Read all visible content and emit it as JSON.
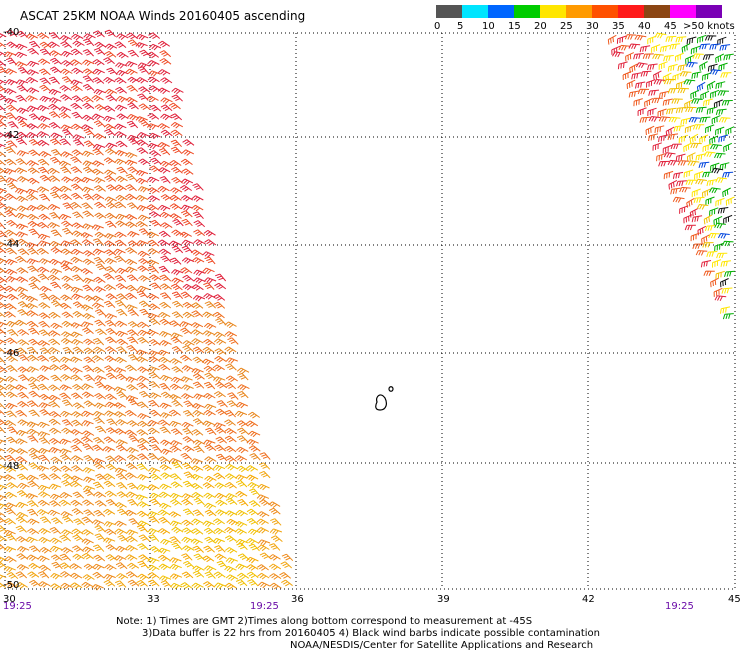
{
  "title": "ASCAT 25KM NOAA Winds 20160405 ascending",
  "legend": {
    "ticks": [
      "0",
      "5",
      "10",
      "15",
      "20",
      "25",
      "30",
      "35",
      "40",
      "45",
      ">50 knots"
    ],
    "colors": [
      "#555555",
      "#00e5ff",
      "#0066ff",
      "#00cc00",
      "#ffe600",
      "#ff9a00",
      "#ff5000",
      "#ff1a1a",
      "#8b4513",
      "#ff00ff",
      "#7a00b5"
    ]
  },
  "map": {
    "lat_labels": [
      "-40",
      "-42",
      "-44",
      "-46",
      "-48",
      "-50"
    ],
    "lon_labels": [
      "30",
      "33",
      "36",
      "39",
      "42",
      "45"
    ],
    "time_labels": [
      "19:25",
      "19:25",
      "19:25"
    ]
  },
  "notes": {
    "line1": "Note: 1) Times are GMT 2)Times along bottom correspond to measurement at -45S",
    "line2": "3)Data buffer is 22 hrs from 20160405 4) Black wind barbs indicate possible contamination",
    "line3": "NOAA/NESDIS/Center for Satellite Applications and Research"
  }
}
